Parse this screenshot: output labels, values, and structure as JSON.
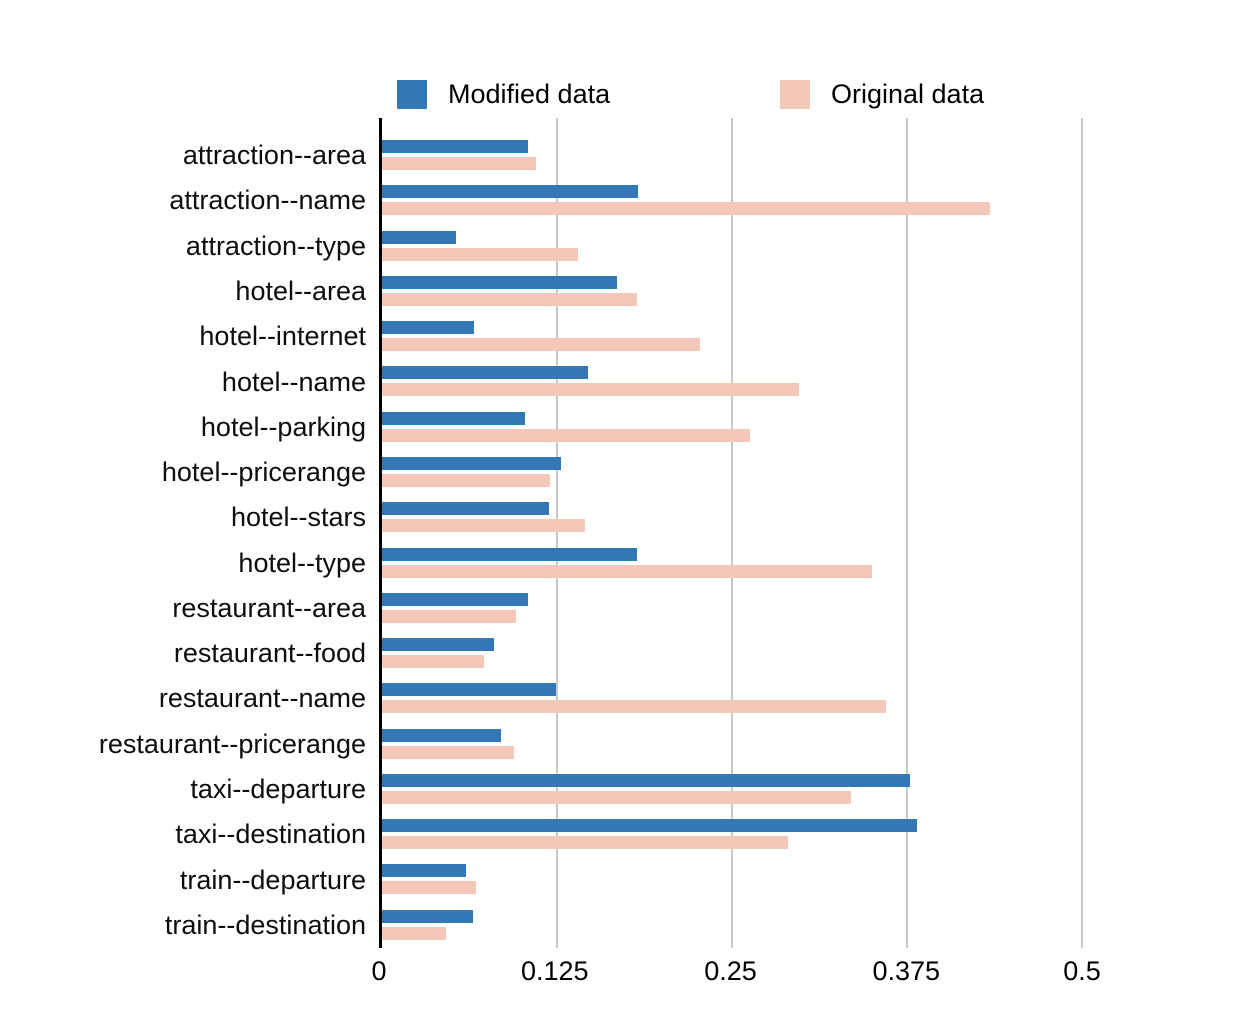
{
  "legend": {
    "items": [
      {
        "label": "Modified data",
        "color": "#3377b4"
      },
      {
        "label": "Original data",
        "color": "#f3c8b9"
      }
    ]
  },
  "colors": {
    "modified_blue": "#3377b4",
    "original_pink": "#f3c8b9",
    "gridline": "#c9c9c9",
    "axis": "#000000"
  },
  "chart_data": {
    "type": "bar",
    "orientation": "horizontal",
    "title": "",
    "xlabel": "",
    "ylabel": "",
    "xlim": [
      0,
      0.5
    ],
    "xticks": [
      0,
      0.125,
      0.25,
      0.375,
      0.5
    ],
    "xtick_labels": [
      "0",
      "0.125",
      "0.25",
      "0.375",
      "0.5"
    ],
    "grid": "vertical",
    "legend_position": "top",
    "categories": [
      "attraction--area",
      "attraction--name",
      "attraction--type",
      "hotel--area",
      "hotel--internet",
      "hotel--name",
      "hotel--parking",
      "hotel--pricerange",
      "hotel--stars",
      "hotel--type",
      "restaurant--area",
      "restaurant--food",
      "restaurant--name",
      "restaurant--pricerange",
      "taxi--departure",
      "taxi--destination",
      "train--departure",
      "train--destination"
    ],
    "series": [
      {
        "name": "Modified data",
        "color": "#3377b4",
        "values": [
          0.104,
          0.183,
          0.053,
          0.168,
          0.066,
          0.147,
          0.102,
          0.128,
          0.119,
          0.182,
          0.104,
          0.08,
          0.124,
          0.085,
          0.377,
          0.382,
          0.06,
          0.065
        ]
      },
      {
        "name": "Original data",
        "color": "#f3c8b9",
        "values": [
          0.11,
          0.434,
          0.14,
          0.182,
          0.227,
          0.298,
          0.263,
          0.12,
          0.145,
          0.35,
          0.096,
          0.073,
          0.36,
          0.094,
          0.335,
          0.29,
          0.067,
          0.046
        ]
      }
    ]
  }
}
